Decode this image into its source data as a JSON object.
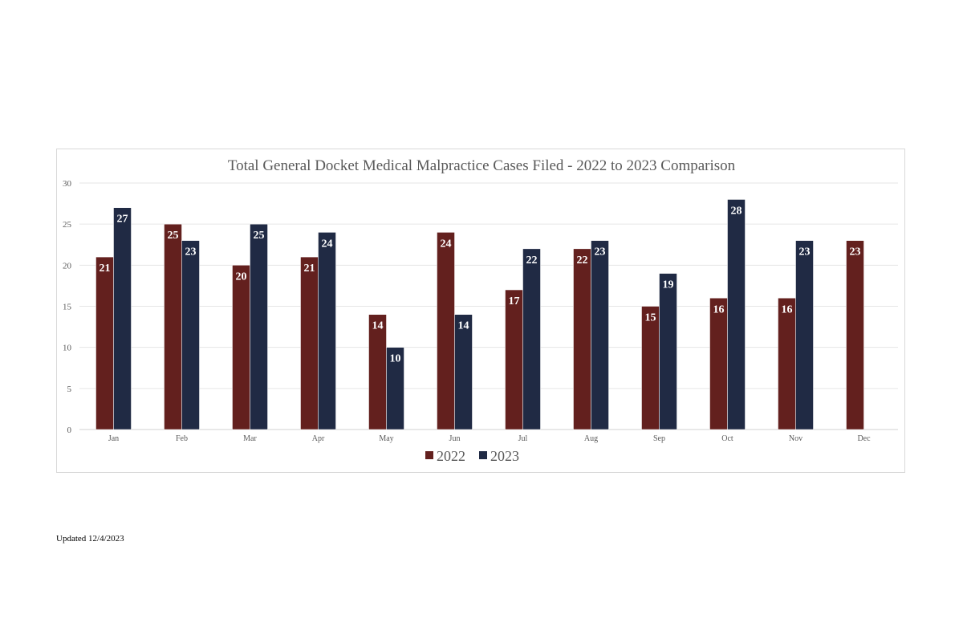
{
  "chart_data": {
    "type": "bar",
    "title": "Total General Docket Medical Malpractice Cases Filed - 2022 to 2023 Comparison",
    "categories": [
      "Jan",
      "Feb",
      "Mar",
      "Apr",
      "May",
      "Jun",
      "Jul",
      "Aug",
      "Sep",
      "Oct",
      "Nov",
      "Dec"
    ],
    "series": [
      {
        "name": "2022",
        "color": "#63201e",
        "values": [
          21,
          25,
          20,
          21,
          14,
          24,
          17,
          22,
          15,
          16,
          16,
          23
        ]
      },
      {
        "name": "2023",
        "color": "#202a44",
        "values": [
          27,
          23,
          25,
          24,
          10,
          14,
          22,
          23,
          19,
          28,
          23,
          null
        ]
      }
    ],
    "ylim": [
      0,
      30
    ],
    "yticks": [
      0,
      5,
      10,
      15,
      20,
      25,
      30
    ],
    "grid": true,
    "legend": "bottom",
    "data_labels": true
  },
  "footnote": "Updated 12/4/2023"
}
